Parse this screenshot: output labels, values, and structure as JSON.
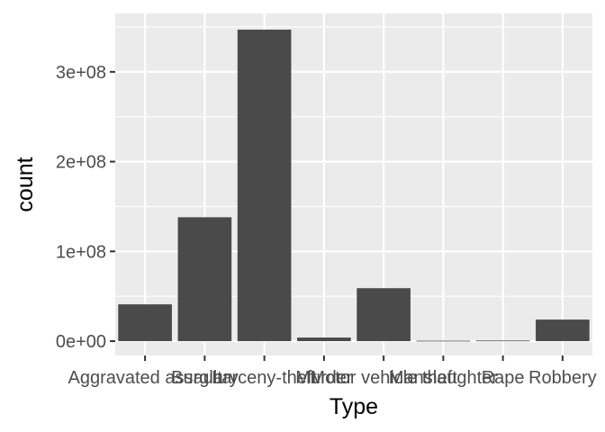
{
  "chart_data": {
    "type": "bar",
    "title": "",
    "xlabel": "Type",
    "ylabel": "count",
    "categories": [
      "Aggravated assault",
      "Burglary",
      "Larceny-theft",
      "Murder",
      "Motor vehicle theft",
      "Manslaughter",
      "Rape",
      "Robbery"
    ],
    "values": [
      41000000,
      138000000,
      347000000,
      4000000,
      59000000,
      500000,
      700000,
      24000000
    ],
    "ylim": [
      -16000000,
      365000000
    ],
    "yticks": [
      0,
      100000000,
      200000000,
      300000000
    ],
    "ytick_labels": [
      "0e+00",
      "1e+08",
      "2e+08",
      "3e+08"
    ],
    "grid": true,
    "legend": "none",
    "colors": {
      "panel_background": "#EBEBEB",
      "grid": "#FFFFFF",
      "bar_fill": "#4A4A4A",
      "tick_label": "#4D4D4D",
      "axis_title": "#000000"
    }
  }
}
